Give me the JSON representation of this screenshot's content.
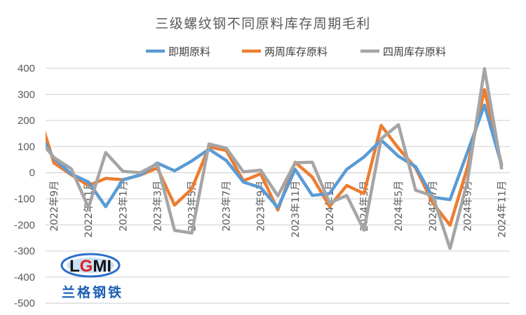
{
  "chart_data": {
    "type": "line",
    "title": "三级螺纹钢不同原料库存周期毛利",
    "xlabel": "",
    "ylabel": "",
    "ylim": [
      -500,
      400
    ],
    "yticks": [
      400,
      300,
      200,
      100,
      0,
      -100,
      -200,
      -300,
      -400,
      -500
    ],
    "grid": true,
    "legend_position": "top",
    "categories": [
      "2022年8月",
      "2022年9月",
      "2022年10月",
      "2022年11月",
      "2022年12月",
      "2023年1月",
      "2023年2月",
      "2023年3月",
      "2023年4月",
      "2023年5月",
      "2023年6月",
      "2023年7月",
      "2023年8月",
      "2023年9月",
      "2023年10月",
      "2023年11月",
      "2023年12月",
      "2024年1月",
      "2024年2月",
      "2024年3月",
      "2024年4月",
      "2024年5月",
      "2024年6月",
      "2024年7月",
      "2024年8月",
      "2024年9月",
      "2024年10月",
      "2024年11月"
    ],
    "xtick_labels": [
      "2022年9月",
      "2022年11月",
      "2023年1月",
      "2023年3月",
      "2023年5月",
      "2023年7月",
      "2023年9月",
      "2023年11月",
      "2024年1月",
      "2024年3月",
      "2024年5月",
      "2024年7月",
      "2024年9月",
      "2024年11月"
    ],
    "series": [
      {
        "name": "即期原料",
        "color": "#5B9BD5",
        "values": [
          166,
          54,
          -5,
          -36,
          -130,
          -27,
          -9,
          37,
          7,
          45,
          90,
          47,
          -36,
          -57,
          -134,
          13,
          -87,
          -80,
          13,
          60,
          125,
          63,
          23,
          -94,
          -103,
          77,
          259,
          27
        ]
      },
      {
        "name": "两周库存原料",
        "color": "#ED7D31",
        "values": [
          250,
          37,
          -8,
          -49,
          -22,
          -27,
          -9,
          18,
          -124,
          -62,
          99,
          85,
          -31,
          -4,
          -143,
          40,
          -17,
          -129,
          -49,
          -80,
          181,
          94,
          18,
          -116,
          -201,
          18,
          318,
          27
        ]
      },
      {
        "name": "四周库存原料",
        "color": "#A5A5A5",
        "values": [
          138,
          58,
          15,
          -134,
          77,
          5,
          0,
          34,
          -221,
          -231,
          110,
          94,
          3,
          10,
          -89,
          38,
          40,
          -116,
          -87,
          -220,
          130,
          184,
          -67,
          -89,
          -290,
          -36,
          398,
          13
        ]
      }
    ]
  },
  "logo": {
    "text": "LGMI",
    "subtext": "兰格钢铁"
  }
}
